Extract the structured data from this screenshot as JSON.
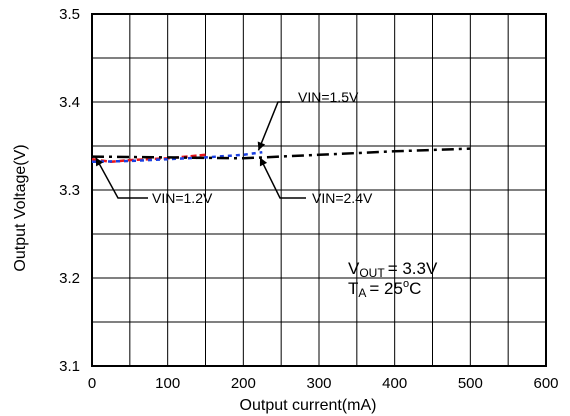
{
  "chart_data": {
    "type": "line",
    "title": "",
    "xlabel": "Output current(mA)",
    "ylabel": "Output Voltage(V)",
    "xlim": [
      0,
      600
    ],
    "ylim": [
      3.1,
      3.5
    ],
    "xticks": [
      0,
      100,
      200,
      300,
      400,
      500,
      600
    ],
    "yticks": [
      3.1,
      3.2,
      3.3,
      3.4,
      3.5
    ],
    "xtick_labels": [
      "0",
      "100",
      "200",
      "300",
      "400",
      "500",
      "600"
    ],
    "ytick_labels": [
      "3.1",
      "3.2",
      "3.3",
      "3.4",
      "3.5"
    ],
    "grid": true,
    "series": [
      {
        "name": "VIN=1.2V",
        "color": "#e8141b",
        "dash": "6,3",
        "x": [
          0,
          25,
          50,
          75,
          100,
          125,
          150
        ],
        "y": [
          3.335,
          3.332,
          3.334,
          3.335,
          3.336,
          3.338,
          3.34
        ]
      },
      {
        "name": "VIN=1.5V",
        "color": "#1a3fe0",
        "dash": "4,4",
        "x": [
          0,
          50,
          100,
          150,
          200,
          225
        ],
        "y": [
          3.332,
          3.333,
          3.335,
          3.337,
          3.34,
          3.343
        ]
      },
      {
        "name": "VIN=2.4V",
        "color": "#000000",
        "dash": "12,5,3,5",
        "x": [
          0,
          100,
          200,
          300,
          400,
          500
        ],
        "y": [
          3.338,
          3.337,
          3.336,
          3.34,
          3.344,
          3.347
        ]
      }
    ],
    "annotations": [
      {
        "text": "VIN=1.5V",
        "point": [
          220,
          3.345
        ]
      },
      {
        "text": "VIN=1.2V",
        "point": [
          5,
          3.337
        ]
      },
      {
        "text": "VIN=2.4V",
        "point": [
          222,
          3.337
        ]
      }
    ],
    "conditions": {
      "vout_main": "V",
      "vout_sub": "OUT",
      "vout_value": "= 3.3V",
      "ta_main": "T",
      "ta_sub": "A",
      "ta_value_pre": "= 25",
      "ta_value_sup": "o",
      "ta_value_post": "C"
    }
  }
}
